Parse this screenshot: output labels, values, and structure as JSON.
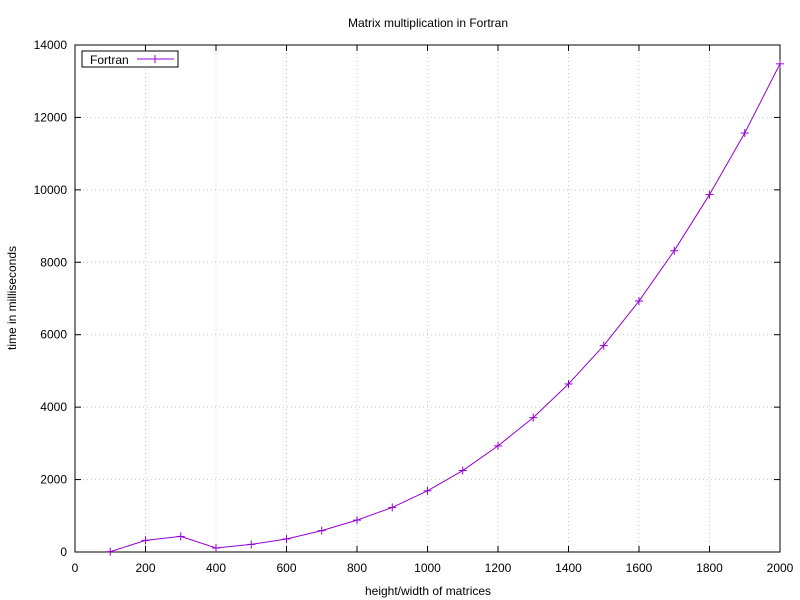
{
  "chart_data": {
    "type": "line",
    "title": "Matrix multiplication in Fortran",
    "xlabel": "height/width of matrices",
    "ylabel": "time in milliseconds",
    "xlim": [
      0,
      2000
    ],
    "ylim": [
      0,
      14000
    ],
    "xticks": [
      0,
      200,
      400,
      600,
      800,
      1000,
      1200,
      1400,
      1600,
      1800,
      2000
    ],
    "yticks": [
      0,
      2000,
      4000,
      6000,
      8000,
      10000,
      12000,
      14000
    ],
    "grid": true,
    "legend_position": "top-left",
    "series": [
      {
        "name": "Fortran",
        "color": "#9400d3",
        "marker": "plus",
        "x": [
          100,
          200,
          300,
          400,
          500,
          600,
          700,
          800,
          900,
          1000,
          1100,
          1200,
          1300,
          1400,
          1500,
          1600,
          1700,
          1800,
          1900,
          2000
        ],
        "y": [
          10,
          320,
          430,
          110,
          210,
          360,
          590,
          880,
          1230,
          1690,
          2250,
          2930,
          3710,
          4640,
          5700,
          6930,
          8320,
          9870,
          11570,
          13480
        ]
      }
    ]
  }
}
